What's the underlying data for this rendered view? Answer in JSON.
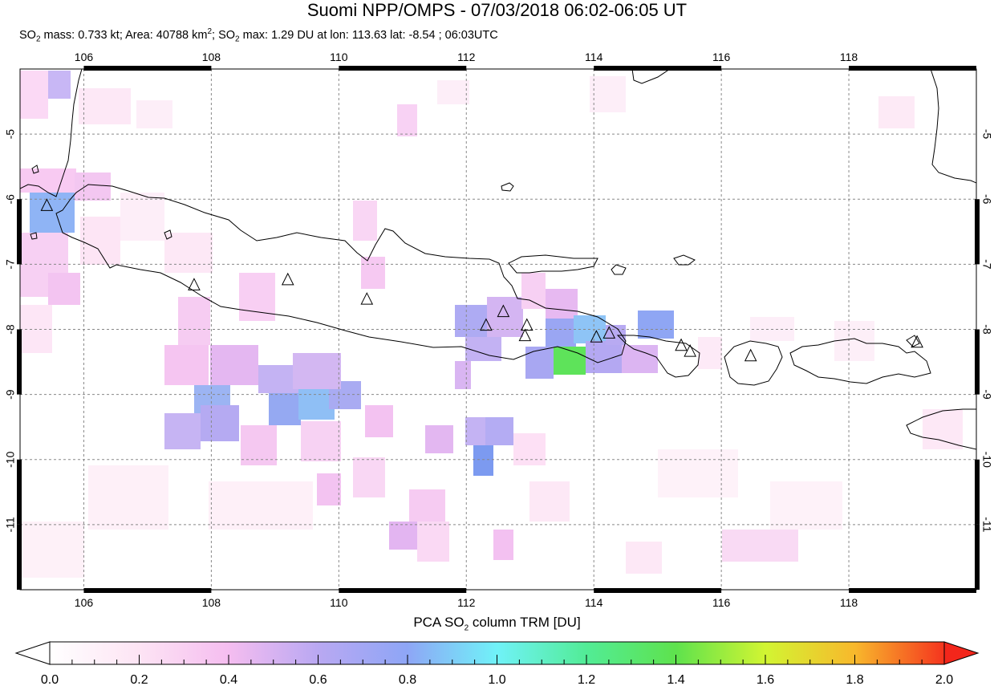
{
  "title": "Suomi NPP/OMPS - 07/03/2018 06:02-06:05 UT",
  "subtitle": {
    "so2_mass_label": "SO",
    "so2_mass_value": " mass: 0.733 kt; Area: 40788 km",
    "so2_max_prefix": "; SO",
    "so2_max_value": " max: 1.29 DU at lon: 113.63 lat: -8.54 ; 06:03UTC"
  },
  "map": {
    "lon_range": [
      105,
      120
    ],
    "lat_range": [
      -12,
      -4
    ],
    "lon_ticks": [
      "106",
      "108",
      "110",
      "112",
      "114",
      "116",
      "118"
    ],
    "lat_ticks": [
      "-5",
      "-6",
      "-7",
      "-8",
      "-9",
      "-10",
      "-11"
    ]
  },
  "colorbar": {
    "title_prefix": "PCA SO",
    "title_suffix": " column TRM [DU]",
    "labels": [
      "0.0",
      "0.2",
      "0.4",
      "0.6",
      "0.8",
      "1.0",
      "1.2",
      "1.4",
      "1.6",
      "1.8",
      "2.0"
    ]
  },
  "volcanoes": [
    {
      "lon": 105.42,
      "lat": -6.1
    },
    {
      "lon": 107.73,
      "lat": -7.32
    },
    {
      "lon": 109.2,
      "lat": -7.24
    },
    {
      "lon": 110.44,
      "lat": -7.54
    },
    {
      "lon": 112.31,
      "lat": -7.94
    },
    {
      "lon": 112.58,
      "lat": -7.73
    },
    {
      "lon": 112.95,
      "lat": -7.94
    },
    {
      "lon": 112.92,
      "lat": -8.1
    },
    {
      "lon": 114.04,
      "lat": -8.12
    },
    {
      "lon": 114.24,
      "lat": -8.06
    },
    {
      "lon": 115.37,
      "lat": -8.25
    },
    {
      "lon": 115.51,
      "lat": -8.34
    },
    {
      "lon": 116.46,
      "lat": -8.41
    },
    {
      "lon": 119.07,
      "lat": -8.2
    }
  ]
}
